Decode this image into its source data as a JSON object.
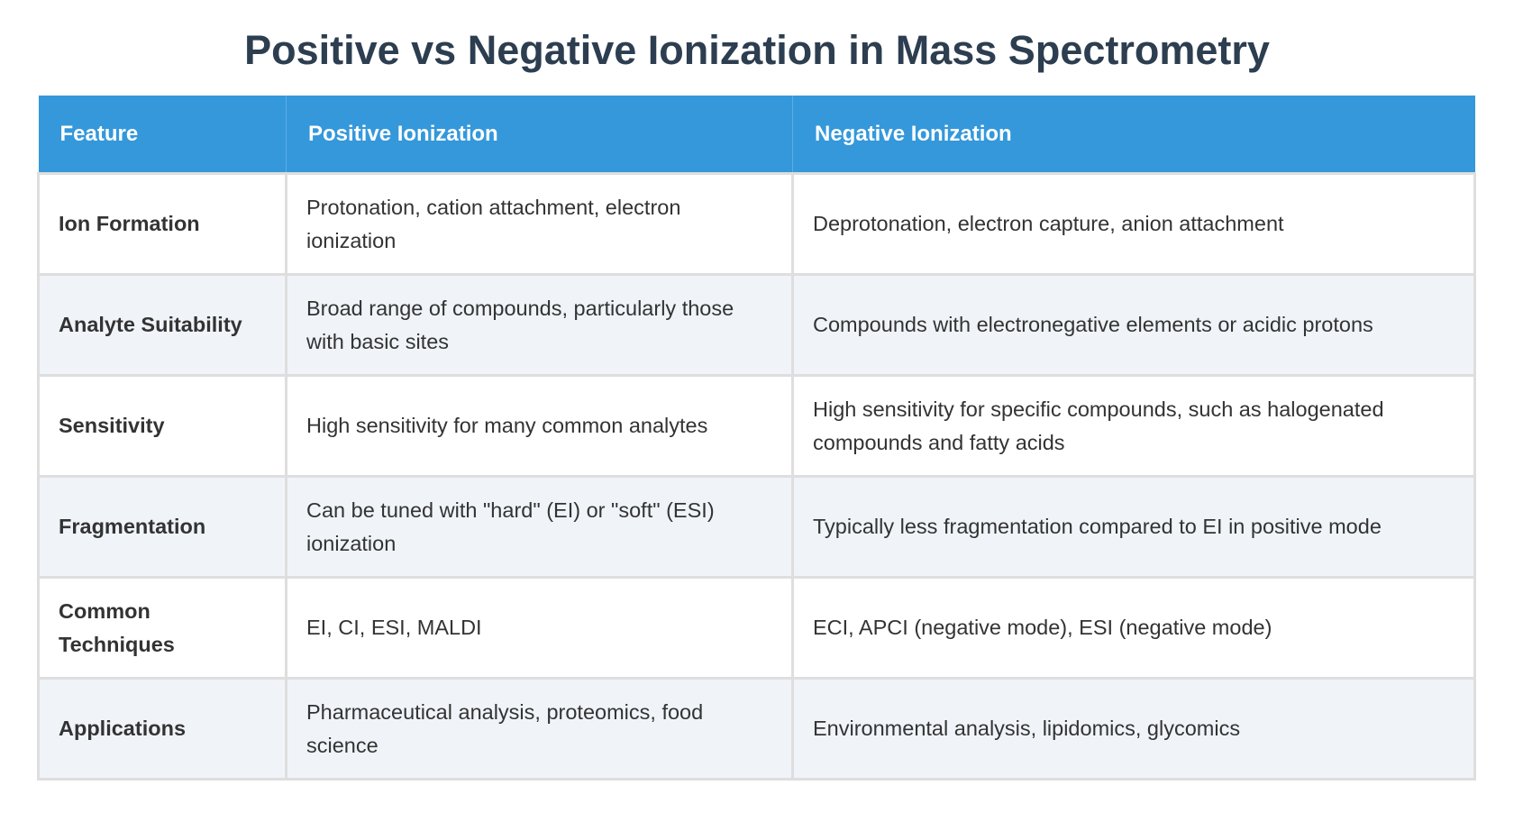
{
  "title": "Positive vs Negative Ionization in Mass Spectrometry",
  "table": {
    "headers": [
      "Feature",
      "Positive Ionization",
      "Negative Ionization"
    ],
    "rows": [
      {
        "feature": "Ion Formation",
        "positive": "Protonation, cation attachment, electron ionization",
        "negative": "Deprotonation, electron capture, anion attachment"
      },
      {
        "feature": "Analyte Suitability",
        "positive": "Broad range of compounds, particularly those with basic sites",
        "negative": "Compounds with electronegative elements or acidic protons"
      },
      {
        "feature": "Sensitivity",
        "positive": "High sensitivity for many common analytes",
        "negative": "High sensitivity for specific compounds, such as halogenated compounds and fatty acids"
      },
      {
        "feature": "Fragmentation",
        "positive": "Can be tuned with \"hard\" (EI) or \"soft\" (ESI) ionization",
        "negative": "Typically less fragmentation compared to EI in positive mode"
      },
      {
        "feature": "Common Techniques",
        "positive": "EI, CI, ESI, MALDI",
        "negative": "ECI, APCI (negative mode), ESI (negative mode)"
      },
      {
        "feature": "Applications",
        "positive": "Pharmaceutical analysis, proteomics, food science",
        "negative": "Environmental analysis, lipidomics, glycomics"
      }
    ]
  },
  "colors": {
    "header_bg": "#3498db",
    "title": "#2c3e50",
    "alt_row": "#f0f4f9"
  }
}
